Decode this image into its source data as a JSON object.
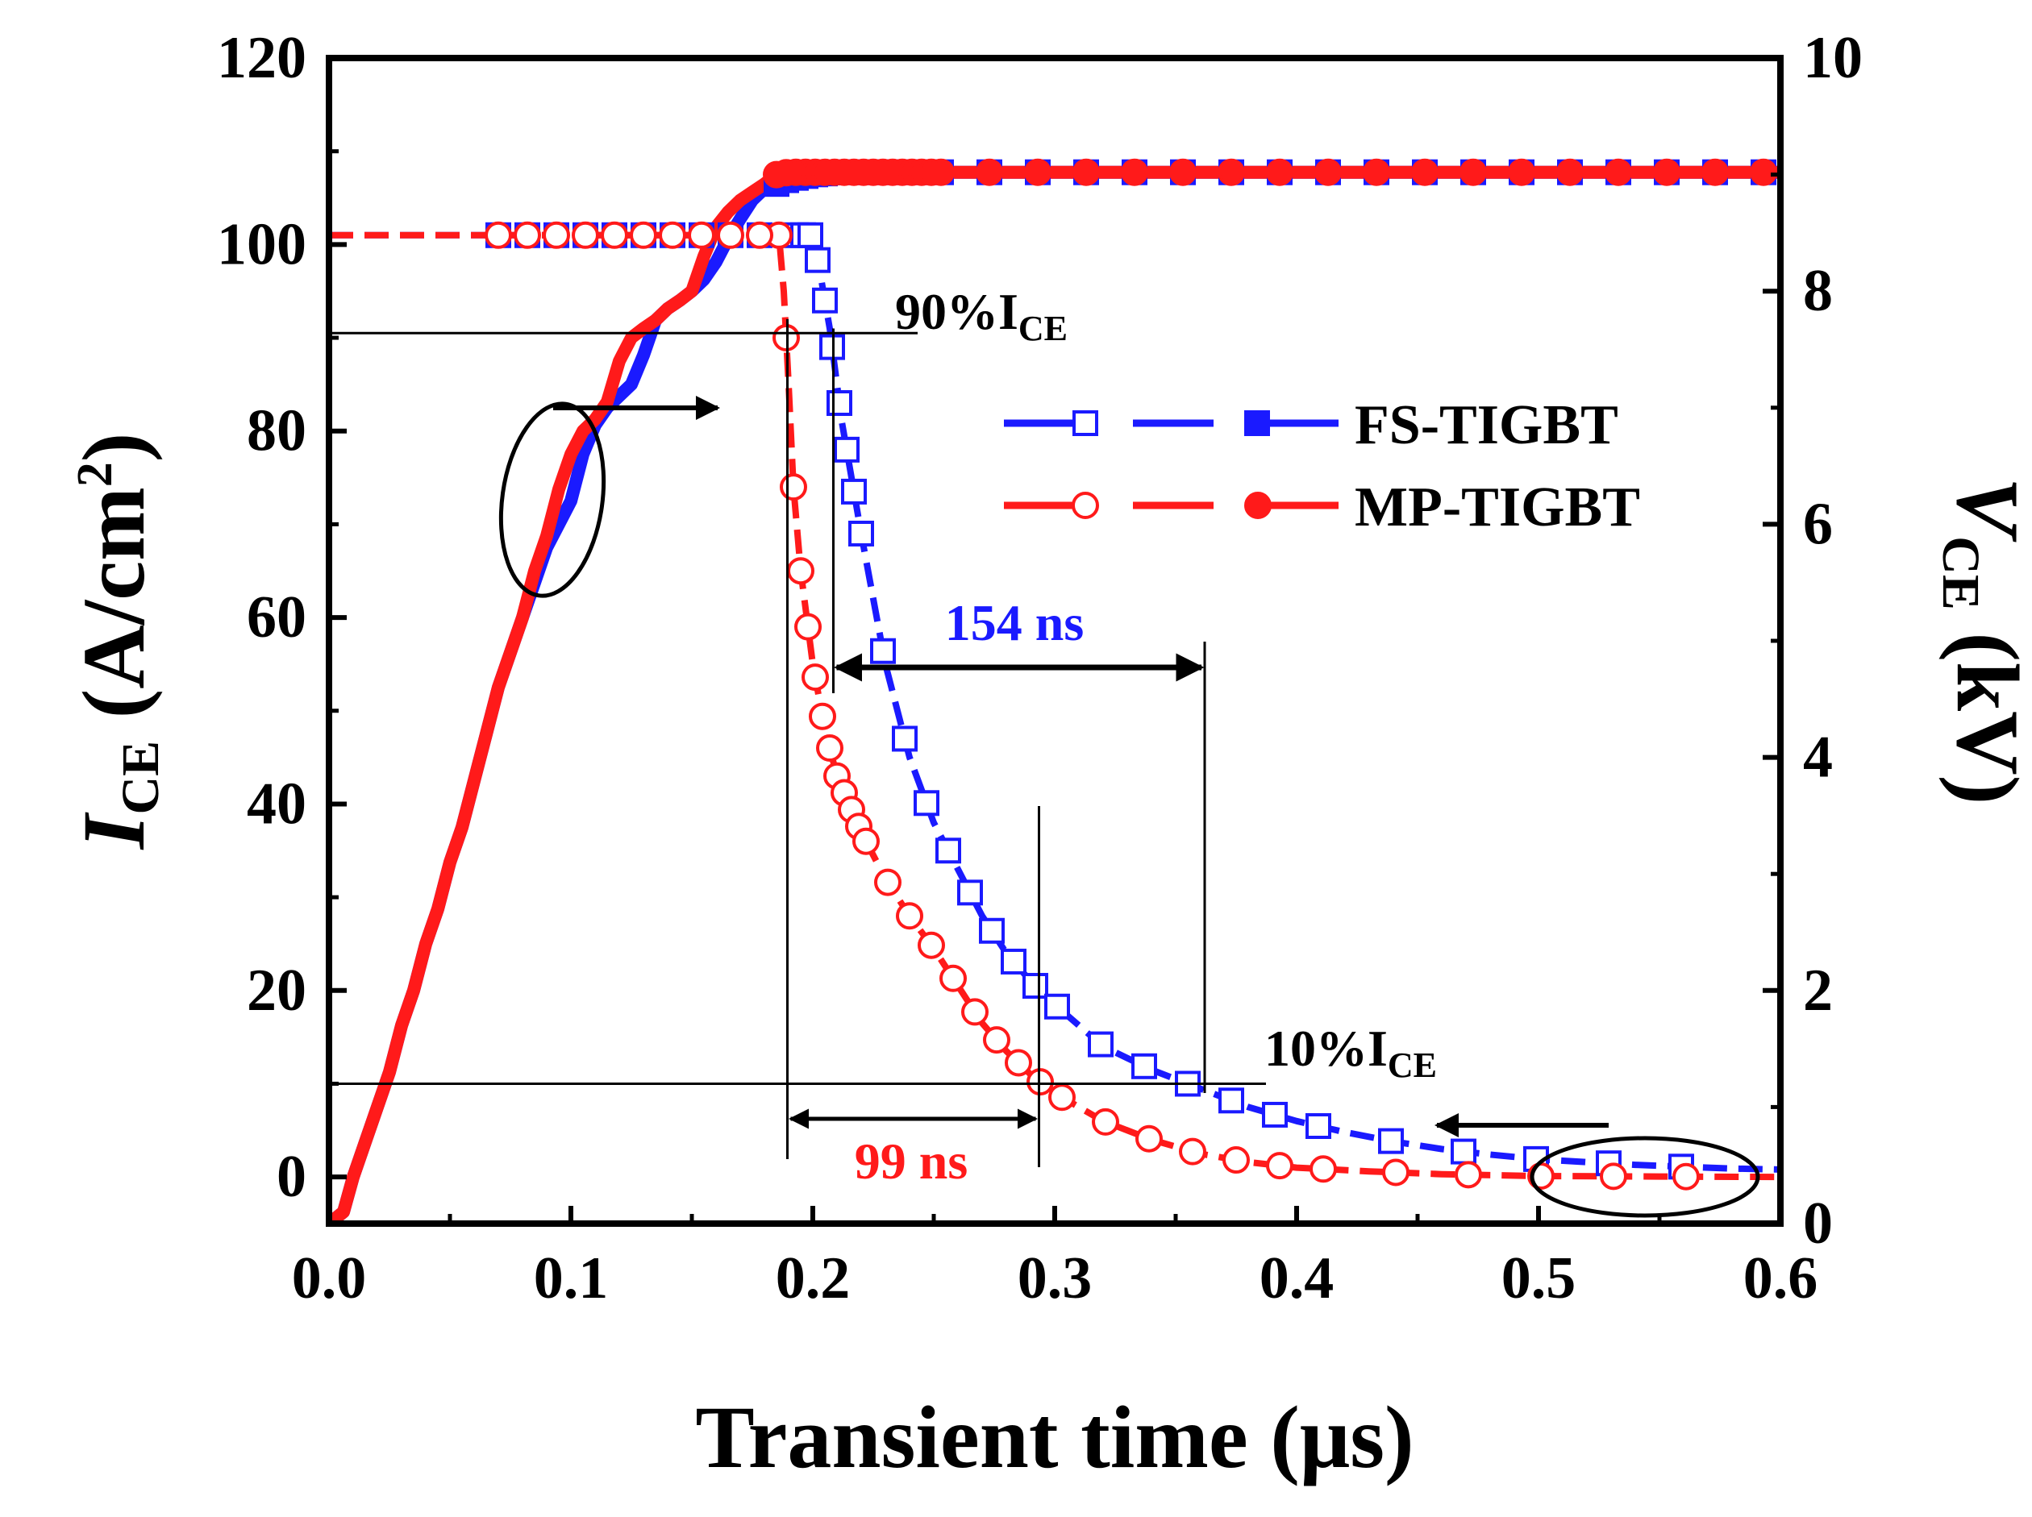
{
  "chart_data": {
    "type": "line",
    "title": "",
    "xlabel": "Transient time (μs)",
    "ylabel_left": {
      "main": "I",
      "sub": "CE",
      "rest": " (A/cm",
      "sup": "2",
      "end": ")"
    },
    "ylabel_right": {
      "main": "V",
      "sub": "CE",
      "rest": " (kV)"
    },
    "xlim": [
      0.0,
      0.6
    ],
    "ylim_left": [
      -5,
      120
    ],
    "ylim_right": [
      0,
      10
    ],
    "x_ticks": [
      "0.0",
      "0.1",
      "0.2",
      "0.3",
      "0.4",
      "0.5",
      "0.6"
    ],
    "y_left_ticks": [
      "0",
      "20",
      "40",
      "60",
      "80",
      "100",
      "120"
    ],
    "y_right_ticks": [
      "0",
      "2",
      "4",
      "6",
      "8",
      "10"
    ],
    "colors": {
      "fs": "#1a1aff",
      "mp": "#ff1a1a",
      "axis": "#000000"
    },
    "series": [
      {
        "name": "FS-TIGBT",
        "quantity": "I_CE",
        "axis": "left",
        "style": "dash-open-square",
        "points": [
          [
            0.0,
            101
          ],
          [
            0.185,
            101
          ],
          [
            0.2,
            101
          ],
          [
            0.203,
            97
          ],
          [
            0.207,
            91
          ],
          [
            0.212,
            81
          ],
          [
            0.22,
            69
          ],
          [
            0.23,
            55
          ],
          [
            0.24,
            45
          ],
          [
            0.25,
            38
          ],
          [
            0.26,
            33
          ],
          [
            0.27,
            28
          ],
          [
            0.28,
            24
          ],
          [
            0.29,
            21
          ],
          [
            0.3,
            18.5
          ],
          [
            0.32,
            14
          ],
          [
            0.34,
            11.5
          ],
          [
            0.36,
            9.5
          ],
          [
            0.38,
            7.5
          ],
          [
            0.4,
            6
          ],
          [
            0.42,
            4.8
          ],
          [
            0.44,
            3.8
          ],
          [
            0.46,
            3
          ],
          [
            0.48,
            2.4
          ],
          [
            0.5,
            1.9
          ],
          [
            0.52,
            1.6
          ],
          [
            0.54,
            1.3
          ],
          [
            0.56,
            1.1
          ],
          [
            0.58,
            0.9
          ],
          [
            0.6,
            0.8
          ]
        ]
      },
      {
        "name": "MP-TIGBT",
        "quantity": "I_CE",
        "axis": "left",
        "style": "dash-open-circle",
        "points": [
          [
            0.0,
            101
          ],
          [
            0.186,
            101
          ],
          [
            0.188,
            95
          ],
          [
            0.19,
            85
          ],
          [
            0.192,
            74
          ],
          [
            0.195,
            65
          ],
          [
            0.2,
            55
          ],
          [
            0.205,
            48
          ],
          [
            0.21,
            43
          ],
          [
            0.22,
            37
          ],
          [
            0.23,
            32
          ],
          [
            0.24,
            28
          ],
          [
            0.25,
            24.5
          ],
          [
            0.26,
            20.5
          ],
          [
            0.27,
            16.5
          ],
          [
            0.28,
            13.5
          ],
          [
            0.29,
            11
          ],
          [
            0.3,
            9
          ],
          [
            0.32,
            6
          ],
          [
            0.34,
            4
          ],
          [
            0.36,
            2.5
          ],
          [
            0.38,
            1.6
          ],
          [
            0.4,
            1
          ],
          [
            0.43,
            0.6
          ],
          [
            0.46,
            0.3
          ],
          [
            0.5,
            0.1
          ],
          [
            0.55,
            0.05
          ],
          [
            0.6,
            0
          ]
        ]
      },
      {
        "name": "FS-TIGBT",
        "quantity": "V_CE",
        "axis": "right",
        "style": "solid-filled-square",
        "points": [
          [
            0.0,
            0
          ],
          [
            0.006,
            0.1
          ],
          [
            0.01,
            0.4
          ],
          [
            0.015,
            0.7
          ],
          [
            0.02,
            1
          ],
          [
            0.025,
            1.3
          ],
          [
            0.03,
            1.7
          ],
          [
            0.035,
            2
          ],
          [
            0.04,
            2.4
          ],
          [
            0.045,
            2.7
          ],
          [
            0.05,
            3.1
          ],
          [
            0.055,
            3.4
          ],
          [
            0.06,
            3.8
          ],
          [
            0.065,
            4.2
          ],
          [
            0.07,
            4.6
          ],
          [
            0.075,
            4.9
          ],
          [
            0.08,
            5.2
          ],
          [
            0.085,
            5.5
          ],
          [
            0.09,
            5.8
          ],
          [
            0.095,
            6
          ],
          [
            0.1,
            6.2
          ],
          [
            0.105,
            6.6
          ],
          [
            0.11,
            6.85
          ],
          [
            0.115,
            7
          ],
          [
            0.12,
            7.1
          ],
          [
            0.125,
            7.2
          ],
          [
            0.13,
            7.45
          ],
          [
            0.135,
            7.75
          ],
          [
            0.14,
            7.85
          ],
          [
            0.145,
            7.92
          ],
          [
            0.15,
            8
          ],
          [
            0.155,
            8.1
          ],
          [
            0.16,
            8.25
          ],
          [
            0.165,
            8.45
          ],
          [
            0.17,
            8.62
          ],
          [
            0.175,
            8.78
          ],
          [
            0.18,
            8.88
          ],
          [
            0.19,
            8.96
          ],
          [
            0.2,
            9.0
          ],
          [
            0.21,
            9.02
          ],
          [
            0.6,
            9.02
          ]
        ]
      },
      {
        "name": "MP-TIGBT",
        "quantity": "V_CE",
        "axis": "right",
        "style": "solid-filled-circle",
        "points": [
          [
            0.0,
            0
          ],
          [
            0.006,
            0.1
          ],
          [
            0.01,
            0.4
          ],
          [
            0.015,
            0.7
          ],
          [
            0.02,
            1
          ],
          [
            0.025,
            1.3
          ],
          [
            0.03,
            1.7
          ],
          [
            0.035,
            2
          ],
          [
            0.04,
            2.4
          ],
          [
            0.045,
            2.7
          ],
          [
            0.05,
            3.1
          ],
          [
            0.055,
            3.4
          ],
          [
            0.06,
            3.8
          ],
          [
            0.065,
            4.2
          ],
          [
            0.07,
            4.6
          ],
          [
            0.075,
            4.9
          ],
          [
            0.08,
            5.2
          ],
          [
            0.085,
            5.6
          ],
          [
            0.09,
            5.9
          ],
          [
            0.095,
            6.3
          ],
          [
            0.1,
            6.6
          ],
          [
            0.105,
            6.8
          ],
          [
            0.11,
            6.9
          ],
          [
            0.115,
            7.05
          ],
          [
            0.12,
            7.4
          ],
          [
            0.125,
            7.6
          ],
          [
            0.13,
            7.68
          ],
          [
            0.135,
            7.75
          ],
          [
            0.14,
            7.85
          ],
          [
            0.145,
            7.92
          ],
          [
            0.15,
            8
          ],
          [
            0.155,
            8.3
          ],
          [
            0.16,
            8.55
          ],
          [
            0.165,
            8.68
          ],
          [
            0.17,
            8.78
          ],
          [
            0.175,
            8.85
          ],
          [
            0.18,
            8.92
          ],
          [
            0.185,
            9.0
          ],
          [
            0.19,
            9.02
          ],
          [
            0.6,
            9.02
          ]
        ]
      }
    ],
    "annotations": {
      "i90": "90%I",
      "i90_sub": "CE",
      "i10": "10%I",
      "i10_sub": "CE",
      "fs_time": "154 ns",
      "mp_time": "99 ns"
    },
    "legend": {
      "position": "top-right",
      "entries": [
        {
          "label": "FS-TIGBT"
        },
        {
          "label": "MP-TIGBT"
        }
      ]
    }
  }
}
